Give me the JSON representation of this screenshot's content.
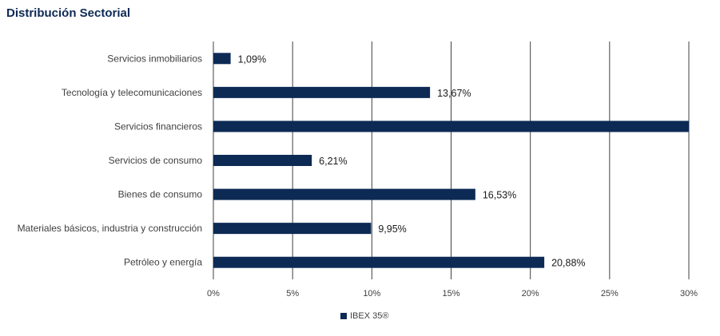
{
  "page": {
    "title": "Distribución Sectorial"
  },
  "colors": {
    "bar": "#0d2a55",
    "grid": "#404040"
  },
  "chart_data": {
    "type": "bar",
    "orientation": "horizontal",
    "title": "Distribución Sectorial",
    "xlabel": "",
    "ylabel": "",
    "xlim": [
      0,
      30
    ],
    "x_ticks": [
      0,
      5,
      10,
      15,
      20,
      25,
      30
    ],
    "x_tick_labels": [
      "0%",
      "5%",
      "10%",
      "15%",
      "20%",
      "25%",
      "30%"
    ],
    "grid": "vertical",
    "legend_position": "bottom",
    "categories": [
      "Servicios inmobiliarios",
      "Tecnología y telecomunicaciones",
      "Servicios financieros",
      "Servicios de consumo",
      "Bienes de consumo",
      "Materiales básicos, industria y construcción",
      "Petróleo y energía"
    ],
    "series": [
      {
        "name": "IBEX 35®",
        "values": [
          1.09,
          13.67,
          31.67,
          6.21,
          16.53,
          9.95,
          20.88
        ],
        "labels": [
          "1,09%",
          "13,67%",
          "",
          "6,21%",
          "16,53%",
          "9,95%",
          "20,88%"
        ]
      }
    ]
  }
}
